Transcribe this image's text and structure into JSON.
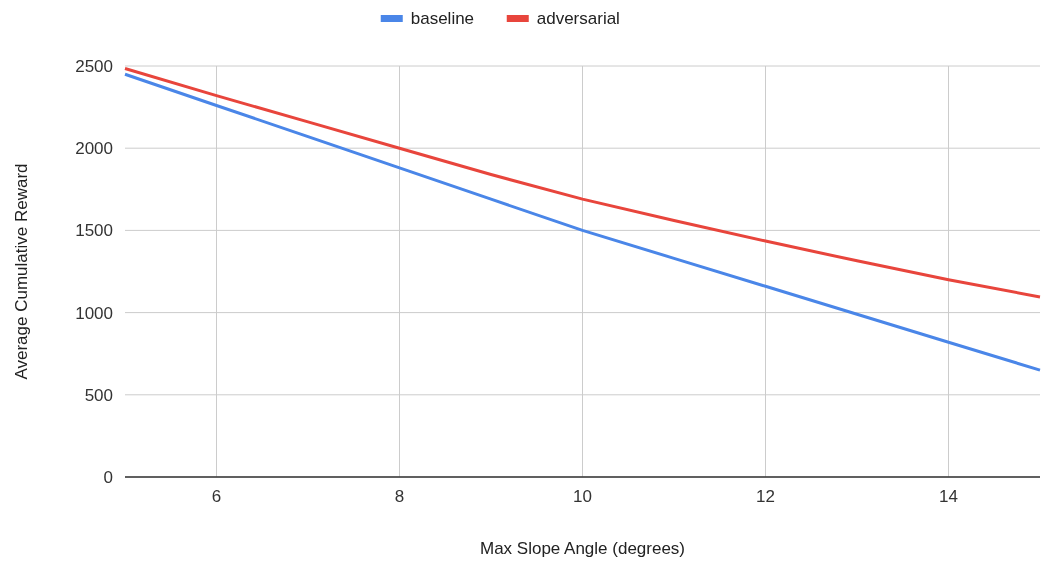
{
  "chart_data": {
    "type": "line",
    "xlabel": "Max Slope Angle (degrees)",
    "ylabel": "Average Cumulative Reward",
    "x": [
      5,
      6,
      7,
      8,
      9,
      10,
      11,
      12,
      13,
      14,
      15
    ],
    "series": [
      {
        "name": "baseline",
        "color": "#4a86e8",
        "values": [
          2450,
          2260,
          2070,
          1880,
          1690,
          1500,
          1330,
          1160,
          990,
          820,
          650
        ]
      },
      {
        "name": "adversarial",
        "color": "#e8453c",
        "values": [
          2485,
          2320,
          2160,
          2000,
          1840,
          1690,
          1560,
          1435,
          1315,
          1200,
          1095
        ]
      }
    ],
    "xlim": [
      5,
      15
    ],
    "xticks": [
      6,
      8,
      10,
      12,
      14
    ],
    "ylim": [
      0,
      2500
    ],
    "yticks": [
      0,
      500,
      1000,
      1500,
      2000,
      2500
    ],
    "grid": true,
    "legend": "top",
    "marker": "none",
    "line_style": "solid"
  }
}
